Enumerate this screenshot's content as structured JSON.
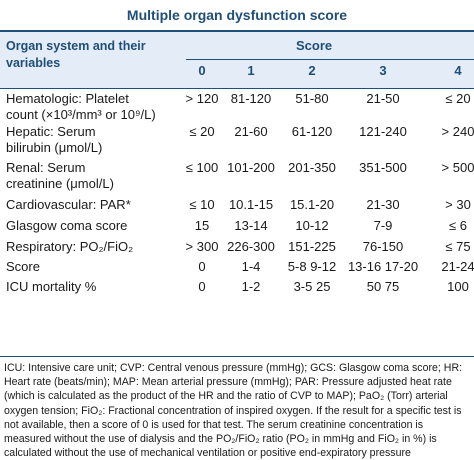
{
  "title": "Multiple organ dysfunction score",
  "header": {
    "organ_label": "Organ system and their variables",
    "score_label": "Score",
    "columns": [
      "0",
      "1",
      "2",
      "3",
      "4"
    ]
  },
  "rows": [
    {
      "organ_lines": [
        "Hematologic: Platelet",
        "count (×10³/mm³ or 10⁹/L)"
      ],
      "cells": [
        "> 120",
        "81-120",
        "51-80",
        "21-50",
        "≤ 20"
      ]
    },
    {
      "organ_lines": [
        "Hepatic: Serum",
        "bilirubin (μmol/L)"
      ],
      "cells": [
        "≤ 20",
        "21-60",
        "61-120",
        "121-240",
        "> 240"
      ]
    },
    {
      "organ_lines": [
        "Renal: Serum",
        "creatinine (μmol/L)"
      ],
      "cells": [
        "≤ 100",
        "101-200",
        "201-350",
        "351-500",
        "> 500"
      ]
    },
    {
      "organ_lines": [
        "Cardiovascular: PAR*"
      ],
      "cells": [
        "≤ 10",
        "10.1-15",
        "15.1-20",
        "21-30",
        "> 30"
      ]
    },
    {
      "organ_lines": [
        "Glasgow coma score"
      ],
      "cells": [
        "15",
        "13-14",
        "10-12",
        "7-9",
        "≤ 6"
      ]
    },
    {
      "organ_lines": [
        "Respiratory: PO₂/FiO₂"
      ],
      "cells": [
        "> 300",
        "226-300",
        "151-225",
        "76-150",
        "≤ 75"
      ]
    },
    {
      "organ_lines": [
        "Score"
      ],
      "cells": [
        "0",
        "1-4",
        "5-8  9-12",
        "13-16  17-20",
        "21-24"
      ]
    },
    {
      "organ_lines": [
        "ICU mortality %"
      ],
      "cells": [
        "0",
        "1-2",
        "3-5  25",
        "50  75",
        "100"
      ]
    }
  ],
  "footnote": "ICU: Intensive care unit; CVP: Central venous pressure (mmHg); GCS: Glasgow coma score; HR: Heart rate (beats/min); MAP: Mean arterial pressure (mmHg); PAR: Pressure adjusted heat rate (which is calculated as the product of the HR and the ratio of CVP to MAP); PaO₂ (Torr) arterial oxygen tension; FiO₂: Fractional concentration of inspired oxygen. If the result for a specific test is not available, then a score of 0 is used for that test. The serum creatinine concentration is measured without the use of dialysis and the PO₂/FiO₂ ratio (PO₂ in mmHg and FiO₂ in %) is calculated without the use of mechanical ventilation or positive end-expiratory pressure",
  "colors": {
    "accent": "#1f4e79",
    "header_bg": "#e3ecf7"
  }
}
